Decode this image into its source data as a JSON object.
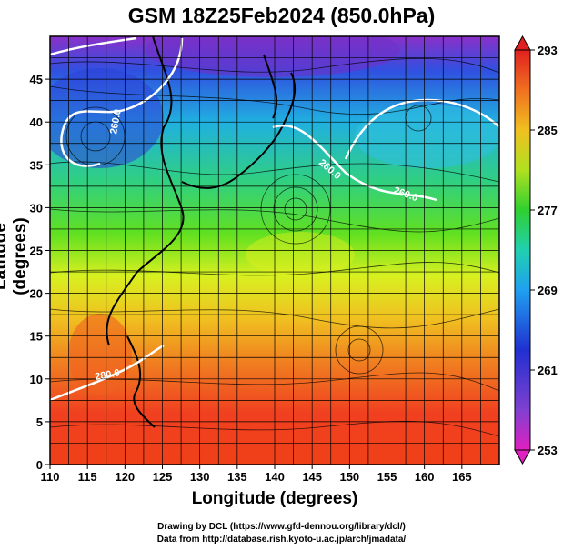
{
  "title": "GSM 18Z25Feb2024 (850.0hPa)",
  "axes": {
    "xlabel": "Longitude (degrees)",
    "ylabel": "Latitude  (degrees)",
    "x_ticks": [
      110,
      115,
      120,
      125,
      130,
      135,
      140,
      145,
      150,
      155,
      160,
      165
    ],
    "y_ticks": [
      0,
      5,
      10,
      15,
      20,
      25,
      30,
      35,
      40,
      45
    ],
    "xlim": [
      110,
      170
    ],
    "ylim": [
      0,
      50
    ]
  },
  "colorbar": {
    "ticks": [
      253,
      261,
      269,
      277,
      285,
      293
    ],
    "range": [
      253,
      293
    ]
  },
  "contour_labels": [
    "260.0",
    "260.0",
    "260.0",
    "280.0"
  ],
  "credits": {
    "line1": "Drawing by DCL (https://www.gfd-dennou.org/library/dcl/)",
    "line2": "Data from http://database.rish.kyoto-u.ac.jp/arch/jmadata/"
  }
}
